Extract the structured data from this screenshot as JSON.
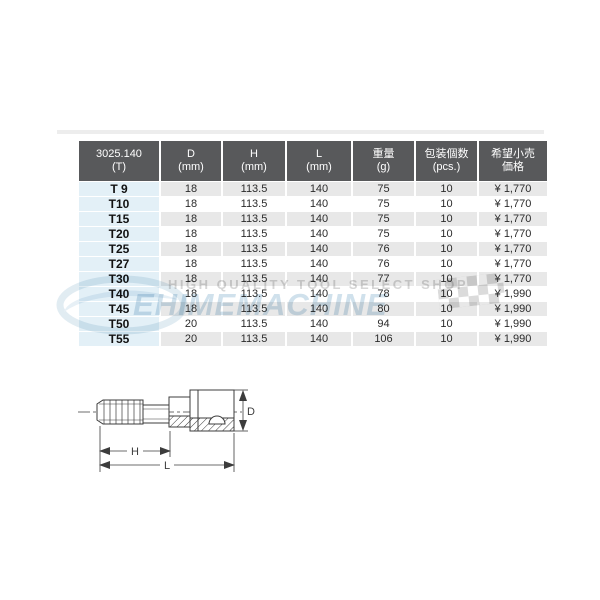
{
  "product_table": {
    "columns": [
      {
        "key": "model",
        "line1": "3025.140",
        "line2": "(T)"
      },
      {
        "key": "d",
        "line1": "D",
        "line2": "(mm)"
      },
      {
        "key": "h",
        "line1": "H",
        "line2": "(mm)"
      },
      {
        "key": "l",
        "line1": "L",
        "line2": "(mm)"
      },
      {
        "key": "weight",
        "line1": "重量",
        "line2": "(g)"
      },
      {
        "key": "pcs",
        "line1": "包装個数",
        "line2": "(pcs.)"
      },
      {
        "key": "price",
        "line1": "希望小売",
        "line2": "価格"
      }
    ],
    "rows": [
      [
        "T 9",
        "18",
        "113.5",
        "140",
        "75",
        "10",
        "¥ 1,770"
      ],
      [
        "T10",
        "18",
        "113.5",
        "140",
        "75",
        "10",
        "¥ 1,770"
      ],
      [
        "T15",
        "18",
        "113.5",
        "140",
        "75",
        "10",
        "¥ 1,770"
      ],
      [
        "T20",
        "18",
        "113.5",
        "140",
        "75",
        "10",
        "¥ 1,770"
      ],
      [
        "T25",
        "18",
        "113.5",
        "140",
        "76",
        "10",
        "¥ 1,770"
      ],
      [
        "T27",
        "18",
        "113.5",
        "140",
        "76",
        "10",
        "¥ 1,770"
      ],
      [
        "T30",
        "18",
        "113.5",
        "140",
        "77",
        "10",
        "¥ 1,770"
      ],
      [
        "T40",
        "18",
        "113.5",
        "140",
        "78",
        "10",
        "¥ 1,990"
      ],
      [
        "T45",
        "18",
        "113.5",
        "140",
        "80",
        "10",
        "¥ 1,990"
      ],
      [
        "T50",
        "20",
        "113.5",
        "140",
        "94",
        "10",
        "¥ 1,990"
      ],
      [
        "T55",
        "20",
        "113.5",
        "140",
        "106",
        "10",
        "¥ 1,990"
      ]
    ]
  },
  "watermark": {
    "tagline": "HIGH QUALITY TOOL SELECT SHOP",
    "brand": "EHIMEMACHINE"
  },
  "diagram": {
    "dim_d": "D",
    "dim_h": "H",
    "dim_l": "L"
  },
  "colors": {
    "header_bg": "#58595b",
    "header_text": "#ffffff",
    "model_column_bg": "#e3f0f7",
    "row_stripe_bg": "#e8e8e8",
    "row_plain_bg": "#ffffff",
    "body_text": "#2b2b2b",
    "drawing_line": "#3c3c3c",
    "watermark_blue": "#aac8dd",
    "watermark_gray": "#d6d6d6"
  }
}
